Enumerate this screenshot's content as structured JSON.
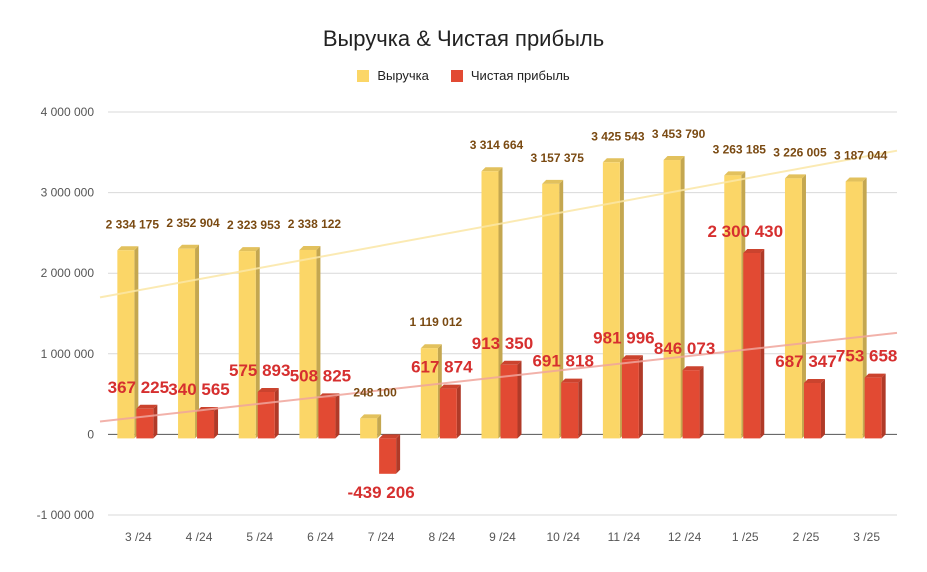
{
  "chart_data": {
    "type": "bar",
    "title": "Выручка & Чистая прибыль",
    "categories": [
      "3 /24",
      "4 /24",
      "5 /24",
      "6 /24",
      "7 /24",
      "8 /24",
      "9 /24",
      "10 /24",
      "11 /24",
      "12 /24",
      "1 /25",
      "2 /25",
      "3 /25"
    ],
    "series": [
      {
        "name": "Выручка",
        "color": "#fbd667",
        "label_color": "#7a4a12",
        "values": [
          2334175,
          2352904,
          2323953,
          2338122,
          248100,
          1119012,
          3314664,
          3157375,
          3425543,
          3453790,
          3263185,
          3226005,
          3187044
        ],
        "labels": [
          "2 334 175",
          "2 352 904",
          "2 323 953",
          "2 338 122",
          "248 100",
          "1 119 012",
          "3 314 664",
          "3 157 375",
          "3 425 543",
          "3 453 790",
          "3 263 185",
          "3 226 005",
          "3 187 044"
        ]
      },
      {
        "name": "Чистая прибыль",
        "color": "#e24a33",
        "label_color": "#d62f2f",
        "values": [
          367225,
          340565,
          575893,
          508825,
          -439206,
          617874,
          913350,
          691818,
          981996,
          846073,
          2300430,
          687347,
          753658
        ],
        "labels": [
          "367 225",
          "340 565",
          "575 893",
          "508 825",
          "-439 206",
          "617 874",
          "913 350",
          "691 818",
          "981 996",
          "846 073",
          "2 300 430",
          "687 347",
          "753 658"
        ]
      }
    ],
    "trendlines": [
      {
        "series": "Выручка",
        "color": "#fbe7a6",
        "start": 1700000,
        "end": 3520000
      },
      {
        "series": "Чистая прибыль",
        "color": "#f0a59c",
        "start": 160000,
        "end": 1260000
      }
    ],
    "y_ticks": [
      {
        "value": 4000000,
        "label": "4 000 000"
      },
      {
        "value": 3000000,
        "label": "3 000 000"
      },
      {
        "value": 2000000,
        "label": "2 000 000"
      },
      {
        "value": 1000000,
        "label": "1 000 000"
      },
      {
        "value": 0,
        "label": "0"
      },
      {
        "value": -1000000,
        "label": "-1 000 000"
      }
    ],
    "ylim": [
      -1000000,
      4000000
    ],
    "grid": true,
    "legend_position": "top-center"
  }
}
